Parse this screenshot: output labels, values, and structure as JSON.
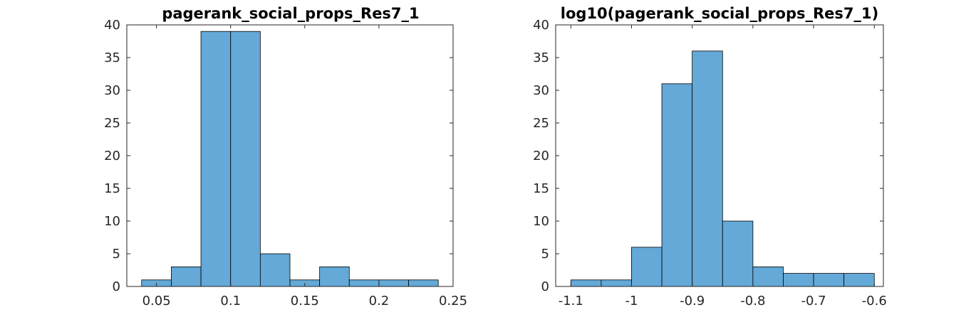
{
  "chart_data": [
    {
      "type": "bar",
      "title": "pagerank_social_props_Res7_1",
      "xlabel": "",
      "ylabel": "",
      "bin_edges": [
        0.04,
        0.06,
        0.08,
        0.1,
        0.12,
        0.14,
        0.16,
        0.18,
        0.2,
        0.22,
        0.24
      ],
      "values": [
        1,
        3,
        39,
        39,
        5,
        1,
        3,
        1,
        1,
        1
      ],
      "xlim": [
        0.03,
        0.25
      ],
      "ylim": [
        0,
        40
      ],
      "xticks": [
        0.05,
        0.1,
        0.15,
        0.2,
        0.25
      ],
      "xtick_labels": [
        "0.05",
        "0.1",
        "0.15",
        "0.2",
        "0.25"
      ],
      "yticks": [
        0,
        5,
        10,
        15,
        20,
        25,
        30,
        35,
        40
      ],
      "ytick_labels": [
        "0",
        "5",
        "10",
        "15",
        "20",
        "25",
        "30",
        "35",
        "40"
      ],
      "grid": false,
      "bar_color": "#64a9d7"
    },
    {
      "type": "bar",
      "title": "log10(pagerank_social_props_Res7_1)",
      "xlabel": "",
      "ylabel": "",
      "bin_edges": [
        -1.1,
        -1.05,
        -1.0,
        -0.95,
        -0.9,
        -0.85,
        -0.8,
        -0.75,
        -0.7,
        -0.65,
        -0.6
      ],
      "values": [
        1,
        1,
        6,
        31,
        36,
        10,
        3,
        2,
        2,
        2
      ],
      "xlim": [
        -1.125,
        -0.585
      ],
      "ylim": [
        0,
        40
      ],
      "xticks": [
        -1.1,
        -1.0,
        -0.9,
        -0.8,
        -0.7,
        -0.6
      ],
      "xtick_labels": [
        "-1.1",
        "-1",
        "-0.9",
        "-0.8",
        "-0.7",
        "-0.6"
      ],
      "yticks": [
        0,
        5,
        10,
        15,
        20,
        25,
        30,
        35,
        40
      ],
      "ytick_labels": [
        "0",
        "5",
        "10",
        "15",
        "20",
        "25",
        "30",
        "35",
        "40"
      ],
      "grid": false,
      "bar_color": "#64a9d7"
    }
  ]
}
